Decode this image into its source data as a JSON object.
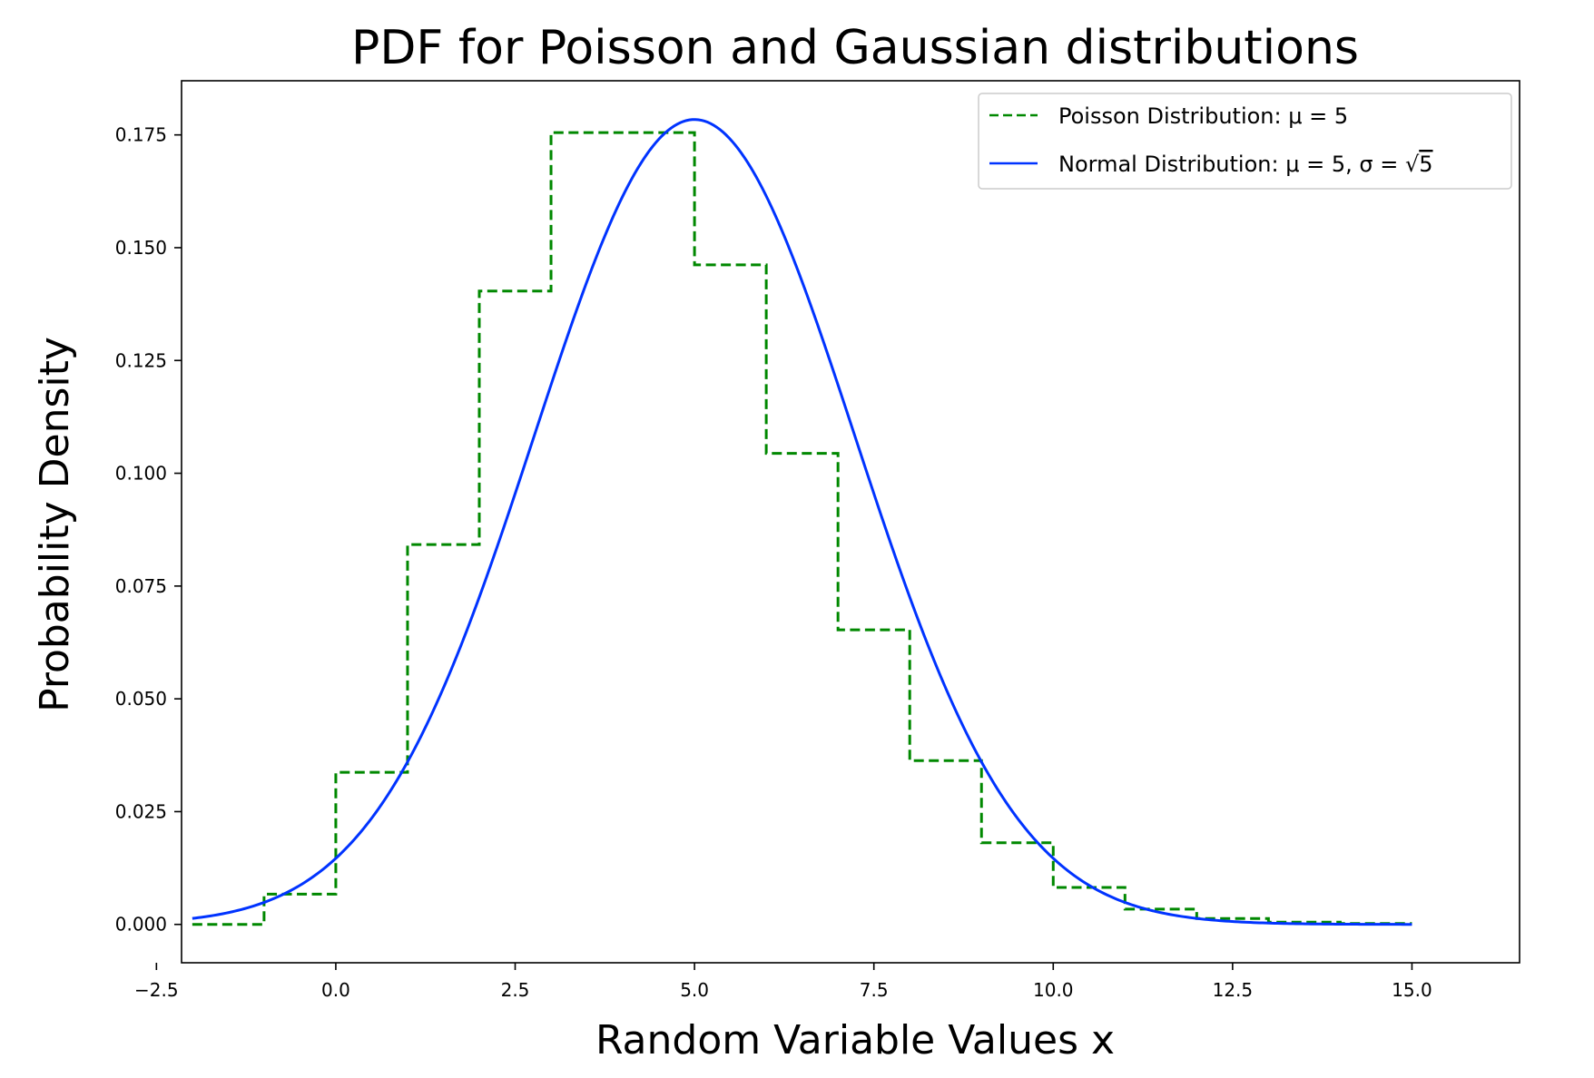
{
  "chart_data": {
    "type": "line",
    "title": "PDF for Poisson and Gaussian distributions",
    "xlabel": "Random Variable Values x",
    "ylabel": "Probability Density",
    "xlim": [
      -2.15,
      16.5
    ],
    "ylim": [
      -0.0085,
      0.187
    ],
    "xticks": [
      -2.5,
      0.0,
      2.5,
      5.0,
      7.5,
      10.0,
      12.5,
      15.0
    ],
    "xtick_labels": [
      "−2.5",
      "0.0",
      "2.5",
      "5.0",
      "7.5",
      "10.0",
      "12.5",
      "15.0"
    ],
    "yticks": [
      0.0,
      0.025,
      0.05,
      0.075,
      0.1,
      0.125,
      0.15,
      0.175
    ],
    "ytick_labels": [
      "0.000",
      "0.025",
      "0.050",
      "0.075",
      "0.100",
      "0.125",
      "0.150",
      "0.175"
    ],
    "grid": false,
    "legend_position": "top-right",
    "series": [
      {
        "name": "Poisson Distribution: μ = 5",
        "style": "dashed-step",
        "color": "#008800",
        "x": [
          -2,
          -1,
          0,
          1,
          2,
          3,
          4,
          5,
          6,
          7,
          8,
          9,
          10,
          11,
          12,
          13,
          14
        ],
        "y": [
          0.0,
          0.0067,
          0.0337,
          0.0842,
          0.1404,
          0.1755,
          0.1755,
          0.1462,
          0.1044,
          0.0653,
          0.0363,
          0.0181,
          0.0082,
          0.0034,
          0.0013,
          0.0005,
          0.0002
        ]
      },
      {
        "name": "Normal Distribution: μ = 5, σ = ",
        "name_sqrt_arg": "5",
        "style": "solid",
        "color": "#0033ff",
        "function": "normal_pdf",
        "mu": 5,
        "sigma_squared": 5,
        "x_range": [
          -2,
          15
        ]
      }
    ]
  }
}
